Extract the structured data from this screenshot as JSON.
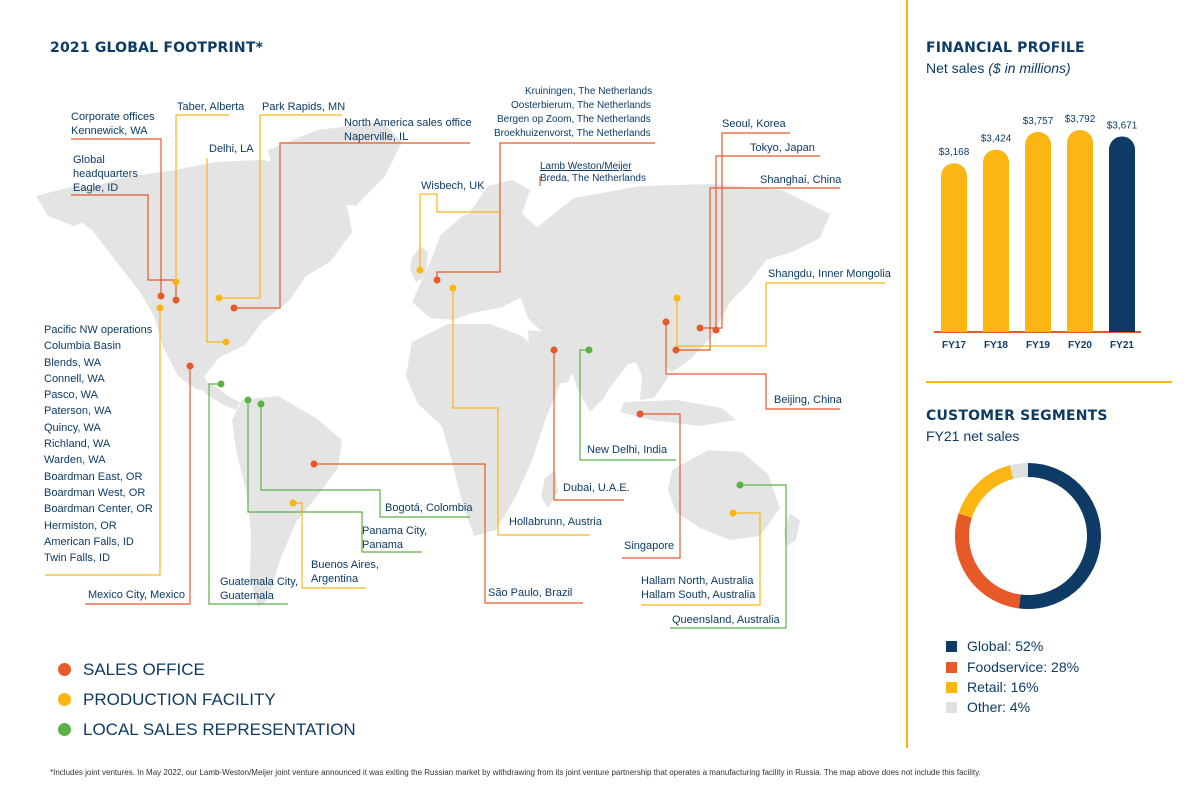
{
  "footprint": {
    "title": "2021 GLOBAL FOOTPRINT*",
    "labels": {
      "corporate": "Corporate offices\nKennewick, WA",
      "global_hq": "Global\nheadquarters\nEagle, ID",
      "taber": "Taber, Alberta",
      "park_rapids": "Park Rapids, MN",
      "na_sales": "North America sales office\nNaperville, IL",
      "delhi_la": "Delhi, LA",
      "kruiningen": "Kruiningen, The Netherlands",
      "oosterbierum": "Oosterbierum, The Netherlands",
      "bergen": "Bergen op Zoom, The Netherlands",
      "broek": "Broekhuizenvorst, The Netherlands",
      "lw_meijer": "Lamb Weston/Meijer",
      "breda": "Breda, The Netherlands",
      "wisbech": "Wisbech, UK",
      "seoul": "Seoul, Korea",
      "tokyo": "Tokyo, Japan",
      "shanghai": "Shanghai, China",
      "shangdu": "Shangdu, Inner Mongolia",
      "beijing": "Beijing, China",
      "pacific_nw": "Pacific NW operations\nColumbia Basin\nBlends, WA\nConnell, WA\nPasco, WA\nPaterson, WA\nQuincy, WA\nRichland, WA\nWarden, WA\nBoardman East, OR\nBoardman West, OR\nBoardman Center, OR\nHermiston, OR\nAmerican Falls, ID\nTwin Falls, ID",
      "mexico": "Mexico City, Mexico",
      "guatemala": "Guatemala City,\nGuatemala",
      "buenos_aires": "Buenos Aires,\nArgentina",
      "panama": "Panama City,\nPanama",
      "bogota": "Bogotá, Colombia",
      "sao_paulo": "São Paulo, Brazil",
      "hollabrunn": "Hollabrunn, Austria",
      "dubai": "Dubai, U.A.E.",
      "new_delhi": "New Delhi, India",
      "singapore": "Singapore",
      "hallam": "Hallam North, Australia\nHallam South, Australia",
      "queensland": "Queensland, Australia"
    },
    "legend": {
      "sales_office": "SALES OFFICE",
      "production": "PRODUCTION FACILITY",
      "local_sales": "LOCAL SALES REPRESENTATION"
    },
    "colors": {
      "sales_office": "#e8592a",
      "production": "#fbb614",
      "local_sales": "#5bb246",
      "land": "#e4e4e4"
    }
  },
  "footnote": "*Includes joint ventures. In May 2022, our Lamb-Weston/Meijer joint venture announced it was exiting the Russian market by withdrawing from its joint venture partnership that operates a manufacturing facility in Russia. The map above does not include this facility.",
  "financial": {
    "title": "FINANCIAL PROFILE",
    "subtitle": "Net sales ",
    "subtitle_italic": "($ in millions)"
  },
  "segments": {
    "title": "CUSTOMER SEGMENTS",
    "subtitle": "FY21 net sales",
    "items": [
      {
        "label": "Global: 52%",
        "color": "#0d3b66"
      },
      {
        "label": "Foodservice: 28%",
        "color": "#e8592a"
      },
      {
        "label": "Retail: 16%",
        "color": "#fbb614"
      },
      {
        "label": "Other: 4%",
        "color": "#e0e0e0"
      }
    ]
  },
  "chart_data": [
    {
      "type": "bar",
      "title": "FINANCIAL PROFILE",
      "ylabel": "Net sales ($ in millions)",
      "categories": [
        "FY17",
        "FY18",
        "FY19",
        "FY20",
        "FY21"
      ],
      "values": [
        3168,
        3424,
        3757,
        3792,
        3671
      ],
      "value_labels": [
        "$3,168",
        "$3,424",
        "$3,757",
        "$3,792",
        "$3,671"
      ],
      "colors": [
        "#fbb614",
        "#fbb614",
        "#fbb614",
        "#fbb614",
        "#0d3b66"
      ],
      "ylim": [
        0,
        3792
      ]
    },
    {
      "type": "pie",
      "title": "CUSTOMER SEGMENTS",
      "subtitle": "FY21 net sales",
      "labels": [
        "Global",
        "Foodservice",
        "Retail",
        "Other"
      ],
      "values": [
        52,
        28,
        16,
        4
      ],
      "colors": [
        "#0d3b66",
        "#e8592a",
        "#fbb614",
        "#e0e0e0"
      ]
    }
  ]
}
